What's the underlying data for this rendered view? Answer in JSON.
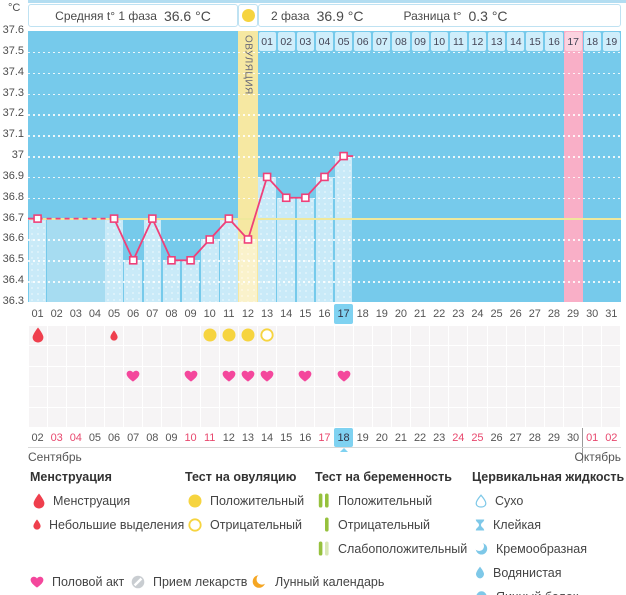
{
  "header": {
    "phase1_label": "Средняя t° 1 фаза",
    "phase1_value": "36.6 °C",
    "phase2_label": "2 фаза",
    "phase2_value": "36.9 °C",
    "diff_label": "Разница t°",
    "diff_value": "0.3 °C",
    "ovulation_column_label": "ОВУЛЯЦИЯ"
  },
  "chart_data": {
    "type": "line",
    "ylabel": "°C",
    "ylim": [
      36.3,
      37.6
    ],
    "ytick_step": 0.1,
    "days_total": 31,
    "series": [
      {
        "name": "temperature",
        "points": [
          [
            1,
            36.7
          ],
          [
            5,
            36.7
          ],
          [
            6,
            36.5
          ],
          [
            7,
            36.7
          ],
          [
            8,
            36.5
          ],
          [
            9,
            36.5
          ],
          [
            10,
            36.6
          ],
          [
            11,
            36.7
          ],
          [
            12,
            36.6
          ],
          [
            13,
            36.9
          ],
          [
            14,
            36.8
          ],
          [
            15,
            36.8
          ],
          [
            16,
            36.9
          ],
          [
            17,
            37.0
          ]
        ]
      }
    ],
    "no_data_days": [
      2,
      3,
      4
    ],
    "coverline": 36.7,
    "ovulation_day": 12,
    "expected_period_day": 29,
    "current_day": 17,
    "phase2_numbering": {
      "start_day": 13,
      "count": 19
    },
    "grid": "dotted-horizontal",
    "legend_position": "bottom"
  },
  "events": {
    "symbol_rows": 5,
    "menstruation": [
      {
        "day": 1,
        "intensity": "full"
      },
      {
        "day": 5,
        "intensity": "spotting"
      }
    ],
    "ovulation_tests": [
      {
        "day": 10,
        "result": "positive"
      },
      {
        "day": 11,
        "result": "positive"
      },
      {
        "day": 12,
        "result": "positive"
      },
      {
        "day": 13,
        "result": "negative"
      }
    ],
    "intercourse_days": [
      6,
      9,
      11,
      12,
      13,
      15,
      17
    ]
  },
  "calendar": {
    "dates": [
      "02",
      "03",
      "04",
      "05",
      "06",
      "07",
      "08",
      "09",
      "10",
      "11",
      "12",
      "13",
      "14",
      "15",
      "16",
      "17",
      "18",
      "19",
      "20",
      "21",
      "22",
      "23",
      "24",
      "25",
      "26",
      "27",
      "28",
      "29",
      "30",
      "01",
      "02"
    ],
    "red_indexes": [
      1,
      2,
      8,
      9,
      15,
      22,
      23,
      29,
      30
    ],
    "today_index": 16,
    "month_divider_index": 29,
    "month_start_label": "Сентябрь",
    "month_end_label": "Октябрь"
  },
  "legend": {
    "groups": [
      {
        "title": "Менструация",
        "items": [
          {
            "icon": "drop-large",
            "label": "Менструация"
          },
          {
            "icon": "drop-small",
            "label": "Небольшие выделения"
          }
        ]
      },
      {
        "title": "Тест на овуляцию",
        "items": [
          {
            "icon": "ovu-positive",
            "label": "Положительный"
          },
          {
            "icon": "ovu-negative",
            "label": "Отрицательный"
          }
        ]
      },
      {
        "title": "Тест на беременность",
        "items": [
          {
            "icon": "preg-positive",
            "label": "Положительный"
          },
          {
            "icon": "preg-negative",
            "label": "Отрицательный"
          },
          {
            "icon": "preg-weak",
            "label": "Слабоположительный"
          }
        ]
      },
      {
        "title": "Цервикальная жидкость",
        "items": [
          {
            "icon": "cf-dry",
            "label": "Сухо"
          },
          {
            "icon": "cf-sticky",
            "label": "Клейкая"
          },
          {
            "icon": "cf-creamy",
            "label": "Кремообразная"
          },
          {
            "icon": "cf-watery",
            "label": "Водянистая"
          },
          {
            "icon": "cf-eggwhite",
            "label": "Яичный белок"
          }
        ]
      }
    ],
    "footer_items": [
      {
        "icon": "heart",
        "label": "Половой акт"
      },
      {
        "icon": "pill",
        "label": "Прием лекарств"
      },
      {
        "icon": "moon",
        "label": "Лунный календарь"
      }
    ]
  },
  "colors": {
    "chart_bg": "#76CAEB",
    "bar": "#C9EAF8",
    "no_data_fill": "#A6DCF1",
    "ovulation_column": "#F6E8A2",
    "ovulation_bar": "#FAF2CB",
    "period_column": "#F9AFC7",
    "period_cell": "#FBD3E0",
    "phase2_cell": "#CFEEFB",
    "line": "#EF4079",
    "coverline": "#EFE89C",
    "highlight": "#7FD2F1",
    "red_date": "#E8486E",
    "menstruation": "#EF3F4D",
    "ovulation_test": "#F6D43F",
    "pregnancy_positive": "#96C13D",
    "pregnancy_weak": "#D9E8B4",
    "cervical": "#7EC8E8",
    "heart": "#F4479C",
    "pill": "#C9CDD1",
    "moon": "#F5A623"
  }
}
